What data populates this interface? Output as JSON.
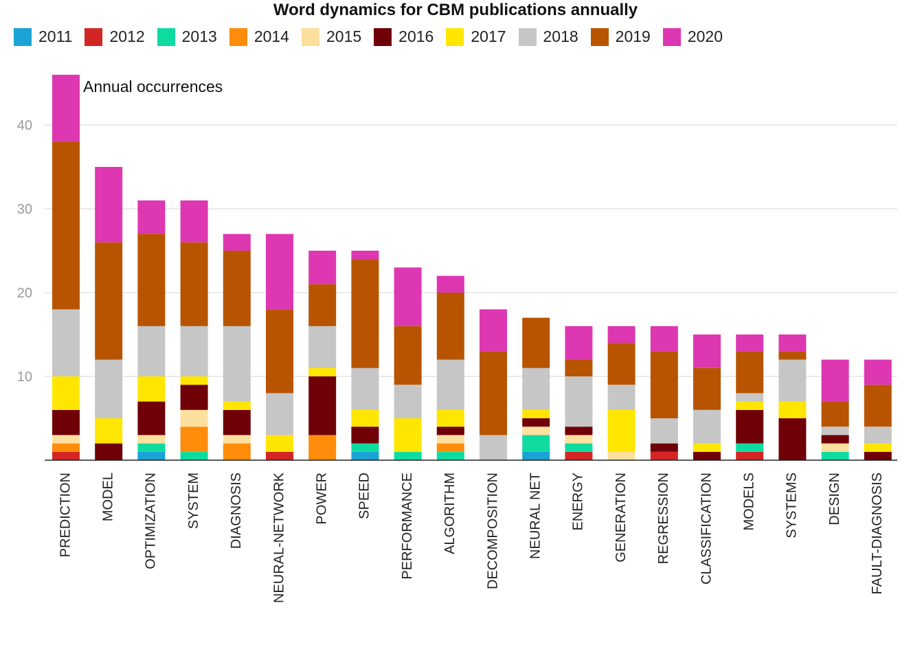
{
  "chart_data": {
    "type": "bar",
    "stacked": true,
    "title": "Word dynamics for CBM publications annually",
    "annotation": "Annual occurrences",
    "ylim": [
      0,
      46
    ],
    "yticks": [
      10,
      20,
      30,
      40
    ],
    "grid": true,
    "legend_position": "top-left",
    "categories": [
      "PREDICTION",
      "MODEL",
      "OPTIMIZATION",
      "SYSTEM",
      "DIAGNOSIS",
      "NEURAL-NETWORK",
      "POWER",
      "SPEED",
      "PERFORMANCE",
      "ALGORITHM",
      "DECOMPOSITION",
      "NEURAL NET",
      "ENERGY",
      "GENERATION",
      "REGRESSION",
      "CLASSIFICATION",
      "MODELS",
      "SYSTEMS",
      "DESIGN",
      "FAULT-DIAGNOSIS"
    ],
    "series": [
      {
        "name": "2011",
        "color": "#1aa3d4",
        "values": [
          0,
          0,
          1,
          0,
          0,
          0,
          0,
          1,
          0,
          0,
          0,
          1,
          0,
          0,
          0,
          0,
          0,
          0,
          0,
          0
        ]
      },
      {
        "name": "2012",
        "color": "#d42525",
        "values": [
          1,
          0,
          0,
          0,
          0,
          1,
          0,
          0,
          0,
          0,
          0,
          0,
          1,
          0,
          1,
          0,
          1,
          0,
          0,
          0
        ]
      },
      {
        "name": "2013",
        "color": "#0fdba0",
        "values": [
          0,
          0,
          1,
          1,
          0,
          0,
          0,
          1,
          1,
          1,
          0,
          2,
          1,
          0,
          0,
          0,
          1,
          0,
          1,
          0
        ]
      },
      {
        "name": "2014",
        "color": "#ff8c0a",
        "values": [
          1,
          0,
          0,
          3,
          2,
          0,
          3,
          0,
          0,
          1,
          0,
          0,
          0,
          0,
          0,
          0,
          0,
          0,
          0,
          0
        ]
      },
      {
        "name": "2015",
        "color": "#fde09e",
        "values": [
          1,
          0,
          1,
          2,
          1,
          0,
          0,
          0,
          0,
          1,
          0,
          1,
          1,
          1,
          0,
          0,
          0,
          0,
          1,
          0
        ]
      },
      {
        "name": "2016",
        "color": "#700008",
        "values": [
          3,
          2,
          4,
          3,
          3,
          0,
          7,
          2,
          0,
          1,
          0,
          1,
          1,
          0,
          1,
          1,
          4,
          5,
          1,
          1
        ]
      },
      {
        "name": "2017",
        "color": "#ffe600",
        "values": [
          4,
          3,
          3,
          1,
          1,
          2,
          1,
          2,
          4,
          2,
          0,
          1,
          0,
          5,
          0,
          1,
          1,
          2,
          0,
          1
        ]
      },
      {
        "name": "2018",
        "color": "#c6c6c6",
        "values": [
          8,
          7,
          6,
          6,
          9,
          5,
          5,
          5,
          4,
          6,
          3,
          5,
          6,
          3,
          3,
          4,
          1,
          5,
          1,
          2
        ]
      },
      {
        "name": "2019",
        "color": "#b85400",
        "values": [
          20,
          14,
          11,
          10,
          9,
          10,
          5,
          13,
          7,
          8,
          10,
          6,
          2,
          5,
          8,
          5,
          5,
          1,
          3,
          5
        ]
      },
      {
        "name": "2020",
        "color": "#dd37b2",
        "values": [
          8,
          9,
          4,
          5,
          2,
          9,
          4,
          1,
          7,
          2,
          5,
          0,
          4,
          2,
          3,
          4,
          2,
          2,
          5,
          3
        ]
      }
    ]
  }
}
